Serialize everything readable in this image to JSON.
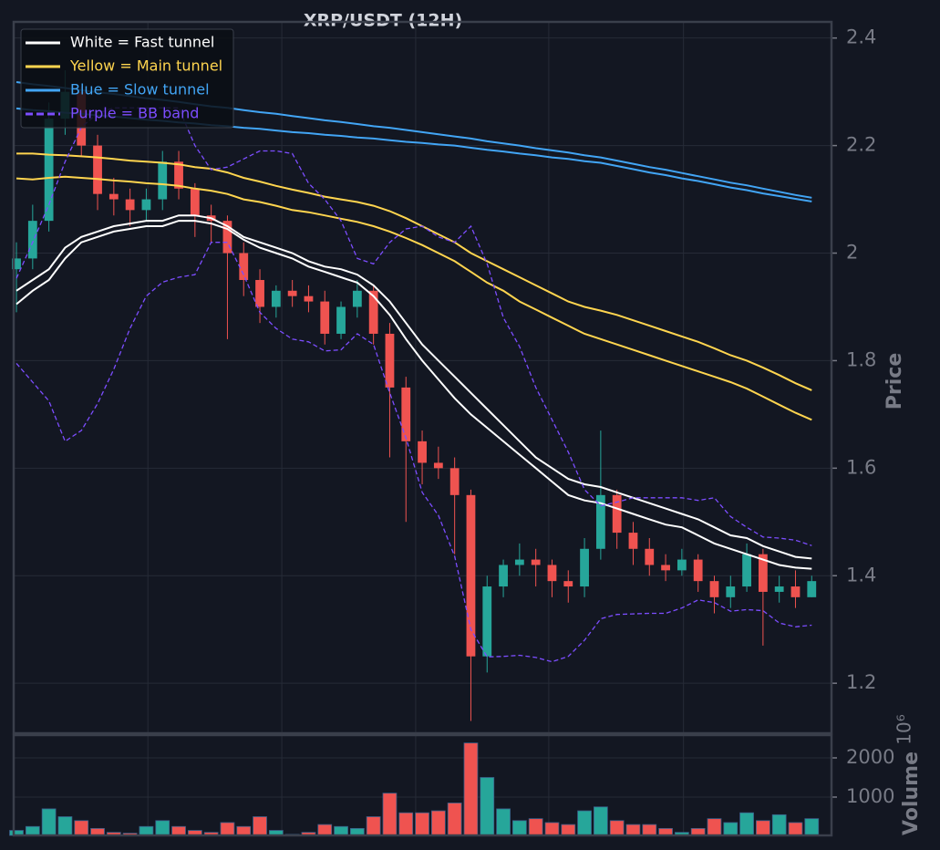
{
  "chart_data": {
    "type": "candlestick",
    "title": "XRP/USDT (12H)",
    "y_label": "Price",
    "volume_label": "Volume",
    "volume_exponent": "10⁶",
    "up_color": "#26a69a",
    "down_color": "#ef5350",
    "background": "#131722",
    "grid": true,
    "legend": "upper left",
    "xlim": [
      -0.17,
      50.22
    ],
    "xticks": [
      8.1,
      16.35,
      24.6,
      32.8,
      41.1
    ],
    "ylim": [
      1.107,
      2.43
    ],
    "yticks": [
      1.2,
      1.4,
      1.6,
      1.8,
      2.0,
      2.2,
      2.4
    ],
    "y2lim": [
      23,
      2581
    ],
    "y2ticks": [
      1000,
      2000
    ],
    "open": [
      1.97,
      1.99,
      2.06,
      2.25,
      2.3,
      2.2,
      2.11,
      2.1,
      2.08,
      2.1,
      2.17,
      2.12,
      2.07,
      2.06,
      2.0,
      1.95,
      1.9,
      1.93,
      1.92,
      1.91,
      1.85,
      1.9,
      1.93,
      1.85,
      1.75,
      1.65,
      1.61,
      1.6,
      1.55,
      1.25,
      1.38,
      1.42,
      1.43,
      1.42,
      1.39,
      1.38,
      1.45,
      1.55,
      1.48,
      1.45,
      1.42,
      1.41,
      1.43,
      1.39,
      1.36,
      1.38,
      1.44,
      1.37,
      1.38,
      1.36
    ],
    "high": [
      2.02,
      2.09,
      2.28,
      2.34,
      2.31,
      2.22,
      2.14,
      2.12,
      2.12,
      2.19,
      2.19,
      2.13,
      2.09,
      2.07,
      2.02,
      1.97,
      1.94,
      1.95,
      1.94,
      1.93,
      1.91,
      1.95,
      1.94,
      1.87,
      1.77,
      1.67,
      1.64,
      1.62,
      1.56,
      1.4,
      1.43,
      1.46,
      1.45,
      1.43,
      1.41,
      1.47,
      1.67,
      1.56,
      1.5,
      1.47,
      1.44,
      1.45,
      1.44,
      1.4,
      1.4,
      1.46,
      1.45,
      1.4,
      1.41,
      1.4
    ],
    "low": [
      1.89,
      1.97,
      2.04,
      2.22,
      2.18,
      2.08,
      2.07,
      2.05,
      2.06,
      2.08,
      2.1,
      2.03,
      2.02,
      1.84,
      1.92,
      1.87,
      1.88,
      1.9,
      1.89,
      1.83,
      1.84,
      1.88,
      1.83,
      1.62,
      1.5,
      1.57,
      1.58,
      1.44,
      1.13,
      1.22,
      1.36,
      1.4,
      1.38,
      1.36,
      1.35,
      1.36,
      1.43,
      1.45,
      1.42,
      1.4,
      1.39,
      1.4,
      1.37,
      1.33,
      1.34,
      1.37,
      1.27,
      1.35,
      1.34,
      1.36
    ],
    "close": [
      1.99,
      2.06,
      2.25,
      2.3,
      2.2,
      2.11,
      2.1,
      2.08,
      2.1,
      2.17,
      2.12,
      2.07,
      2.06,
      2.0,
      1.95,
      1.9,
      1.93,
      1.92,
      1.91,
      1.85,
      1.9,
      1.93,
      1.85,
      1.75,
      1.65,
      1.61,
      1.6,
      1.55,
      1.25,
      1.38,
      1.42,
      1.43,
      1.42,
      1.39,
      1.38,
      1.45,
      1.55,
      1.48,
      1.45,
      1.42,
      1.41,
      1.43,
      1.39,
      1.36,
      1.38,
      1.44,
      1.37,
      1.38,
      1.36,
      1.39
    ],
    "volume": [
      150,
      250,
      700,
      500,
      400,
      200,
      100,
      80,
      250,
      400,
      250,
      150,
      100,
      350,
      250,
      500,
      150,
      50,
      100,
      300,
      250,
      200,
      500,
      1100,
      600,
      600,
      650,
      850,
      2380,
      1500,
      700,
      400,
      450,
      350,
      300,
      650,
      750,
      400,
      300,
      300,
      200,
      100,
      200,
      450,
      350,
      600,
      400,
      550,
      350,
      450
    ],
    "series": [
      {
        "name": "White = Fast tunnel",
        "color": "#ffffff",
        "dashed": false,
        "upper": [
          1.93,
          1.95,
          1.97,
          2.01,
          2.03,
          2.04,
          2.05,
          2.055,
          2.06,
          2.06,
          2.07,
          2.07,
          2.065,
          2.05,
          2.03,
          2.02,
          2.01,
          2.0,
          1.985,
          1.975,
          1.97,
          1.96,
          1.94,
          1.91,
          1.87,
          1.83,
          1.8,
          1.77,
          1.74,
          1.71,
          1.68,
          1.65,
          1.62,
          1.6,
          1.58,
          1.57,
          1.565,
          1.555,
          1.545,
          1.535,
          1.525,
          1.515,
          1.505,
          1.49,
          1.475,
          1.47,
          1.455,
          1.445,
          1.435,
          1.432
        ],
        "lower": [
          1.905,
          1.93,
          1.95,
          1.99,
          2.02,
          2.03,
          2.04,
          2.045,
          2.05,
          2.05,
          2.06,
          2.06,
          2.055,
          2.045,
          2.025,
          2.01,
          2.0,
          1.99,
          1.975,
          1.965,
          1.955,
          1.945,
          1.92,
          1.885,
          1.84,
          1.8,
          1.765,
          1.73,
          1.7,
          1.675,
          1.65,
          1.625,
          1.6,
          1.575,
          1.55,
          1.54,
          1.535,
          1.525,
          1.515,
          1.505,
          1.495,
          1.49,
          1.475,
          1.46,
          1.45,
          1.44,
          1.43,
          1.42,
          1.415,
          1.413
        ]
      },
      {
        "name": "Yellow = Main tunnel",
        "color": "#ffd54f",
        "dashed": false,
        "upper": [
          2.185,
          2.185,
          2.183,
          2.182,
          2.18,
          2.178,
          2.175,
          2.172,
          2.17,
          2.168,
          2.165,
          2.16,
          2.157,
          2.15,
          2.14,
          2.133,
          2.125,
          2.118,
          2.112,
          2.105,
          2.1,
          2.095,
          2.088,
          2.078,
          2.065,
          2.05,
          2.035,
          2.02,
          2.0,
          1.985,
          1.97,
          1.955,
          1.94,
          1.925,
          1.91,
          1.9,
          1.893,
          1.885,
          1.875,
          1.865,
          1.855,
          1.845,
          1.835,
          1.823,
          1.81,
          1.8,
          1.787,
          1.773,
          1.758,
          1.745
        ],
        "lower": [
          2.139,
          2.137,
          2.14,
          2.142,
          2.14,
          2.138,
          2.135,
          2.133,
          2.13,
          2.128,
          2.125,
          2.12,
          2.116,
          2.11,
          2.1,
          2.095,
          2.088,
          2.08,
          2.076,
          2.07,
          2.064,
          2.058,
          2.05,
          2.04,
          2.028,
          2.015,
          2.0,
          1.985,
          1.965,
          1.945,
          1.93,
          1.91,
          1.895,
          1.88,
          1.865,
          1.85,
          1.84,
          1.83,
          1.82,
          1.81,
          1.8,
          1.79,
          1.78,
          1.77,
          1.76,
          1.748,
          1.733,
          1.718,
          1.703,
          1.69
        ]
      },
      {
        "name": "Blue = Slow tunnel",
        "color": "#42a5f5",
        "dashed": false,
        "upper": [
          2.318,
          2.314,
          2.311,
          2.307,
          2.303,
          2.299,
          2.296,
          2.292,
          2.288,
          2.285,
          2.281,
          2.277,
          2.273,
          2.27,
          2.266,
          2.262,
          2.259,
          2.255,
          2.251,
          2.247,
          2.244,
          2.24,
          2.236,
          2.233,
          2.229,
          2.225,
          2.221,
          2.217,
          2.213,
          2.208,
          2.204,
          2.2,
          2.195,
          2.191,
          2.187,
          2.182,
          2.178,
          2.172,
          2.166,
          2.16,
          2.155,
          2.149,
          2.143,
          2.137,
          2.131,
          2.126,
          2.12,
          2.114,
          2.108,
          2.103
        ],
        "lower": [
          2.269,
          2.266,
          2.264,
          2.261,
          2.259,
          2.256,
          2.254,
          2.251,
          2.248,
          2.246,
          2.243,
          2.241,
          2.238,
          2.236,
          2.233,
          2.231,
          2.228,
          2.225,
          2.223,
          2.22,
          2.218,
          2.215,
          2.213,
          2.21,
          2.207,
          2.205,
          2.202,
          2.2,
          2.196,
          2.192,
          2.189,
          2.185,
          2.182,
          2.178,
          2.175,
          2.171,
          2.168,
          2.162,
          2.156,
          2.15,
          2.145,
          2.139,
          2.134,
          2.128,
          2.122,
          2.117,
          2.111,
          2.106,
          2.101,
          2.096
        ]
      },
      {
        "name": "Purple = BB band",
        "color": "#7c4dff",
        "dashed": true,
        "upper": [
          1.953,
          2.02,
          2.09,
          2.17,
          2.234,
          2.26,
          2.27,
          2.27,
          2.27,
          2.27,
          2.27,
          2.2,
          2.155,
          2.16,
          2.175,
          2.19,
          2.19,
          2.185,
          2.13,
          2.1,
          2.06,
          1.99,
          1.98,
          2.02,
          2.045,
          2.05,
          2.03,
          2.02,
          2.05,
          1.98,
          1.88,
          1.826,
          1.75,
          1.69,
          1.63,
          1.56,
          1.53,
          1.537,
          1.545,
          1.545,
          1.545,
          1.545,
          1.54,
          1.545,
          1.51,
          1.49,
          1.472,
          1.47,
          1.466,
          1.456
        ],
        "lower": [
          1.795,
          1.76,
          1.725,
          1.65,
          1.67,
          1.72,
          1.784,
          1.86,
          1.92,
          1.946,
          1.955,
          1.96,
          2.02,
          2.02,
          1.96,
          1.89,
          1.86,
          1.84,
          1.835,
          1.818,
          1.82,
          1.85,
          1.83,
          1.74,
          1.656,
          1.555,
          1.512,
          1.436,
          1.3,
          1.249,
          1.25,
          1.252,
          1.248,
          1.24,
          1.25,
          1.28,
          1.32,
          1.328,
          1.329,
          1.33,
          1.33,
          1.34,
          1.355,
          1.35,
          1.334,
          1.337,
          1.335,
          1.312,
          1.305,
          1.308
        ]
      }
    ]
  }
}
